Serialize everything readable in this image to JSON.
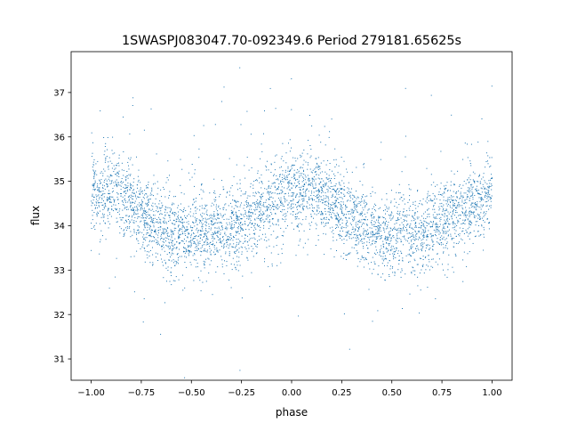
{
  "chart_data": {
    "type": "scatter",
    "title": "1SWASPJ083047.70-092349.6 Period 279181.65625s",
    "xlabel": "phase",
    "ylabel": "flux",
    "xlim": [
      -1.1,
      1.1
    ],
    "ylim": [
      30.52,
      37.92
    ],
    "xticks": [
      "−1.00",
      "−0.75",
      "−0.50",
      "−0.25",
      "0.00",
      "0.25",
      "0.50",
      "0.75",
      "1.00"
    ],
    "xtick_values": [
      -1,
      -0.75,
      -0.5,
      -0.25,
      0,
      0.25,
      0.5,
      0.75,
      1
    ],
    "yticks": [
      "31",
      "32",
      "33",
      "34",
      "35",
      "36",
      "37"
    ],
    "ytick_values": [
      31,
      32,
      33,
      34,
      35,
      36,
      37
    ],
    "grid": false,
    "marker_color": "#1f77b4",
    "folded_profile": {
      "phase": [
        0.0,
        0.04,
        0.1,
        0.2,
        0.3,
        0.4,
        0.5,
        0.6,
        0.7,
        0.8,
        0.9,
        0.96,
        1.0
      ],
      "flux": [
        34.9,
        34.6,
        34.95,
        34.5,
        34.1,
        33.8,
        33.8,
        33.85,
        33.95,
        34.2,
        34.5,
        34.6,
        34.9
      ]
    },
    "scatter_sd": 0.45
  }
}
